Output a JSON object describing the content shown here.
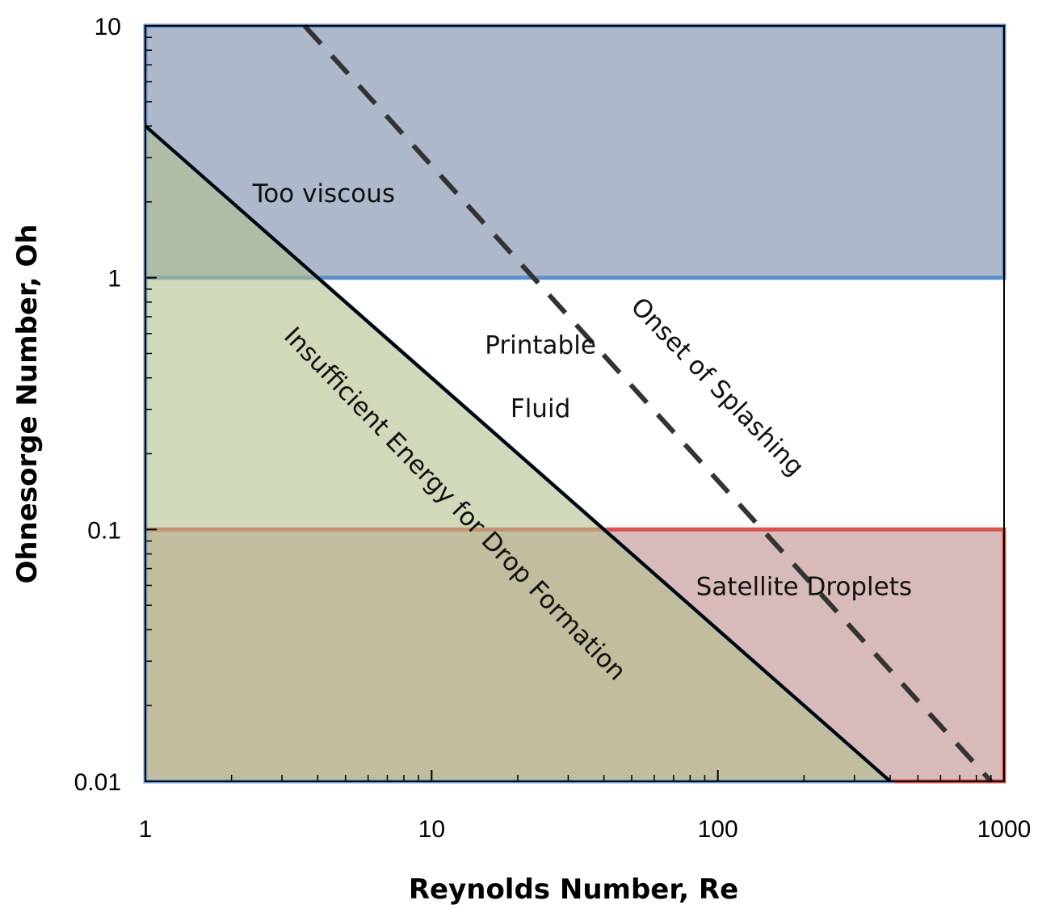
{
  "chart_data": {
    "type": "area",
    "title": "",
    "xlabel": "Reynolds Number, Re",
    "ylabel": "Ohnesorge Number, Oh",
    "x_scale": "log",
    "y_scale": "log",
    "xlim": [
      1,
      1000
    ],
    "ylim": [
      0.01,
      10
    ],
    "x_ticks": [
      {
        "value": 1,
        "label": "1"
      },
      {
        "value": 10,
        "label": "10"
      },
      {
        "value": 100,
        "label": "100"
      },
      {
        "value": 1000,
        "label": "1000"
      }
    ],
    "y_ticks": [
      {
        "value": 10,
        "label": "10"
      },
      {
        "value": 1,
        "label": "1"
      },
      {
        "value": 0.1,
        "label": "0.1"
      },
      {
        "value": 0.01,
        "label": "0.01"
      }
    ],
    "grid": false,
    "regions": [
      {
        "id": "too-viscous",
        "label": "Too viscous",
        "fill": "#5b7297",
        "fill_opacity": 0.5,
        "stroke": "#5b8fc9",
        "polygon": [
          [
            1,
            1
          ],
          [
            1000,
            1
          ],
          [
            1000,
            10
          ],
          [
            1,
            10
          ]
        ]
      },
      {
        "id": "satellite-droplets",
        "label": "Satellite Droplets",
        "fill": "#a45a5a",
        "fill_opacity": 0.42,
        "stroke": "#d9534f",
        "polygon": [
          [
            1,
            0.1
          ],
          [
            1000,
            0.1
          ],
          [
            1000,
            0.01
          ],
          [
            1,
            0.01
          ]
        ]
      },
      {
        "id": "insufficient-energy",
        "label": "Insufficient Energy for Drop Formation",
        "fill": "#b3bf8e",
        "fill_opacity": 0.6,
        "stroke": "#6f9fd6",
        "polygon": [
          [
            1,
            4
          ],
          [
            1,
            0.01
          ],
          [
            400,
            0.01
          ]
        ]
      }
    ],
    "lines": [
      {
        "id": "printable-boundary",
        "style": "solid",
        "color": "#000000",
        "points": [
          [
            1,
            4
          ],
          [
            400,
            0.01
          ]
        ]
      },
      {
        "id": "onset-of-splashing",
        "style": "dashed",
        "color": "#333333",
        "points": [
          [
            3.6,
            10
          ],
          [
            900,
            0.01
          ]
        ]
      }
    ],
    "annotations": [
      {
        "id": "too-viscous",
        "text": "Too viscous",
        "x": 4.2,
        "y": 2.0,
        "rotate": 0
      },
      {
        "id": "printable-fluid-1",
        "text": "Printable",
        "x": 24,
        "y": 0.5,
        "rotate": 0
      },
      {
        "id": "printable-fluid-2",
        "text": "Fluid",
        "x": 24,
        "y": 0.28,
        "rotate": 0
      },
      {
        "id": "insufficient-energy",
        "text": "Insufficient Energy for Drop Formation",
        "x": 11.5,
        "y": 0.12,
        "rotate": 46
      },
      {
        "id": "onset-of-splashing",
        "text": "Onset of Splashing",
        "x": 95,
        "y": 0.35,
        "rotate": 46
      },
      {
        "id": "satellite-droplets",
        "text": "Satellite Droplets",
        "x": 200,
        "y": 0.055,
        "rotate": 0
      }
    ]
  }
}
